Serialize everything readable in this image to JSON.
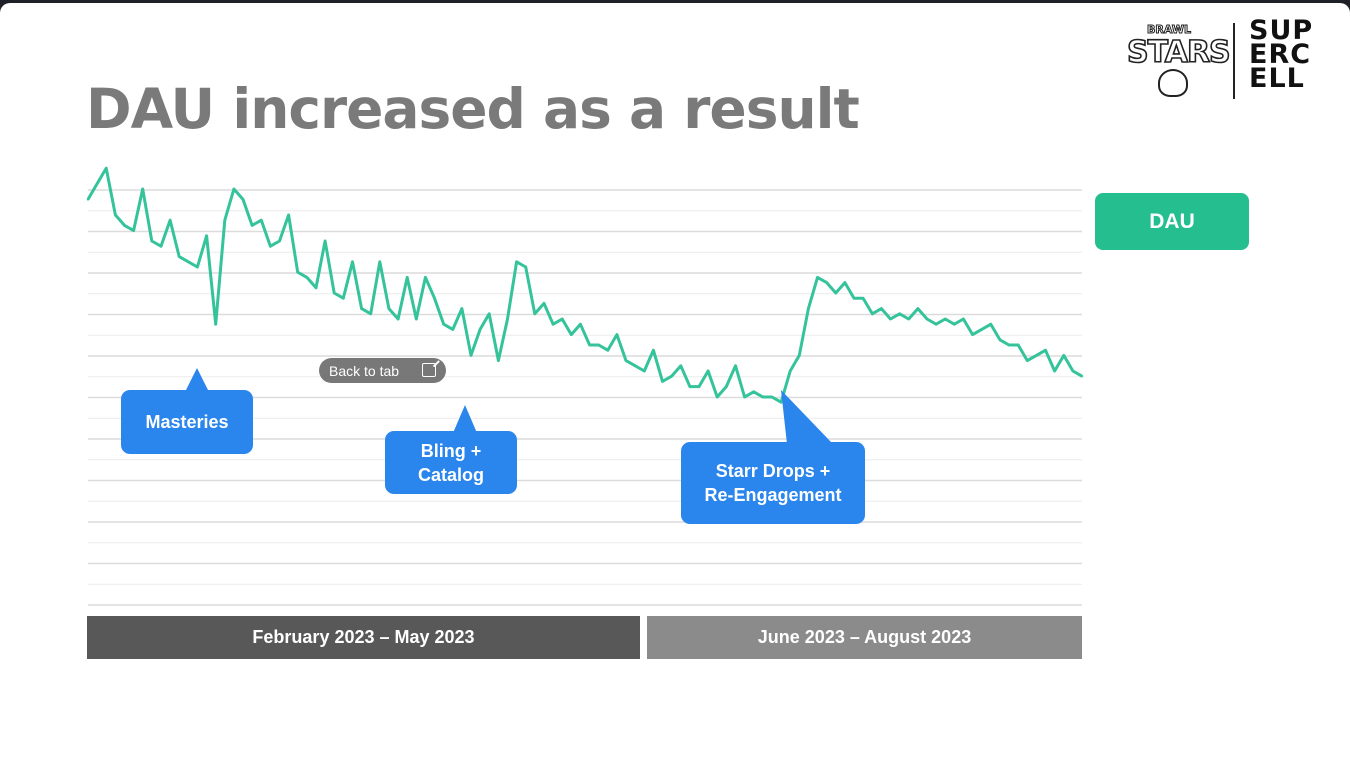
{
  "slide": {
    "title": "DAU increased as a result"
  },
  "logos": {
    "brawl_stars_top": "BRAWL",
    "brawl_stars_main": "STARS",
    "supercell_lines": [
      "SUP",
      "ERC",
      "ELL"
    ]
  },
  "overlay": {
    "back_to_tab": "Back to tab",
    "icon": "external-link-icon"
  },
  "colors": {
    "line": "#34c39a",
    "legend": "#25bf8f",
    "callout": "#2a86ec",
    "period_1": "#585858",
    "period_2": "#8b8b8b",
    "title": "#7a7a7a"
  },
  "chart_data": {
    "type": "line",
    "series": [
      {
        "name": "DAU",
        "values": [
          7.8,
          8.1,
          8.4,
          7.5,
          7.3,
          7.2,
          8.0,
          7.0,
          6.9,
          7.4,
          6.7,
          6.6,
          6.5,
          7.1,
          5.4,
          7.4,
          8.0,
          7.8,
          7.3,
          7.4,
          6.9,
          7.0,
          7.5,
          6.4,
          6.3,
          6.1,
          7.0,
          6.0,
          5.9,
          6.6,
          5.7,
          5.6,
          6.6,
          5.7,
          5.5,
          6.3,
          5.5,
          6.3,
          5.9,
          5.4,
          5.3,
          5.7,
          4.8,
          5.3,
          5.6,
          4.7,
          5.5,
          6.6,
          6.5,
          5.6,
          5.8,
          5.4,
          5.5,
          5.2,
          5.4,
          5.0,
          5.0,
          4.9,
          5.2,
          4.7,
          4.6,
          4.5,
          4.9,
          4.3,
          4.4,
          4.6,
          4.2,
          4.2,
          4.5,
          4.0,
          4.2,
          4.6,
          4.0,
          4.1,
          4.0,
          4.0,
          3.9,
          4.5,
          4.8,
          5.7,
          6.3,
          6.2,
          6.0,
          6.2,
          5.9,
          5.9,
          5.6,
          5.7,
          5.5,
          5.6,
          5.5,
          5.7,
          5.5,
          5.4,
          5.5,
          5.4,
          5.5,
          5.2,
          5.3,
          5.4,
          5.1,
          5.0,
          5.0,
          4.7,
          4.8,
          4.9,
          4.5,
          4.8,
          4.5,
          4.4
        ]
      }
    ],
    "annotations": [
      {
        "label": "Masteries",
        "at_index": 14
      },
      {
        "label": "Bling +\nCatalog",
        "at_index": 45
      },
      {
        "label": "Starr Drops +\nRe-Engagement",
        "at_index": 78
      }
    ],
    "periods": [
      {
        "label": "February 2023 – May 2023"
      },
      {
        "label": "June 2023 – August 2023"
      }
    ],
    "legend": "DAU",
    "grid": true,
    "legend_position": "right",
    "xlabel": "",
    "ylabel": ""
  }
}
